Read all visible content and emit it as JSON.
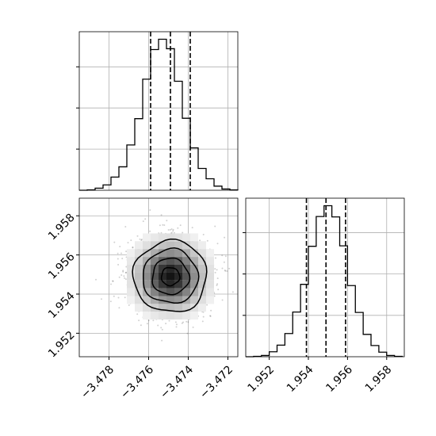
{
  "chart_data": {
    "type": "corner",
    "grid": true,
    "line_color": "#000000",
    "grid_color": "#b0b0b0",
    "parameters": [
      {
        "index": 0,
        "range": [
          -3.4795,
          -3.4715
        ],
        "quantiles": [
          -3.4759,
          -3.4749,
          -3.4739
        ],
        "tick_values": [
          -3.478,
          -3.476,
          -3.474,
          -3.472
        ],
        "tick_labels": [
          "−3.478",
          "−3.476",
          "−3.474",
          "−3.472"
        ],
        "histogram": {
          "bin_edges": [
            -3.4795,
            -3.4791,
            -3.4787,
            -3.4783,
            -3.4779,
            -3.4775,
            -3.4771,
            -3.4767,
            -3.4763,
            -3.4759,
            -3.4755,
            -3.4751,
            -3.4747,
            -3.4743,
            -3.4739,
            -3.4735,
            -3.4731,
            -3.4727,
            -3.4723,
            -3.4719,
            -3.4715
          ],
          "counts": [
            0,
            1,
            5,
            13,
            32,
            57,
            110,
            174,
            270,
            342,
            367,
            344,
            265,
            175,
            103,
            53,
            28,
            10,
            3,
            1
          ]
        }
      },
      {
        "index": 1,
        "range": [
          1.9508,
          1.9589
        ],
        "quantiles": [
          1.9539,
          1.9549,
          1.9559
        ],
        "tick_values": [
          1.952,
          1.954,
          1.956,
          1.958
        ],
        "tick_labels": [
          "1.952",
          "1.954",
          "1.956",
          "1.958"
        ],
        "histogram": {
          "bin_edges": [
            1.9508,
            1.9512,
            1.9516,
            1.952,
            1.9524,
            1.9528,
            1.9532,
            1.9536,
            1.954,
            1.9544,
            1.9548,
            1.9552,
            1.9556,
            1.956,
            1.9564,
            1.9568,
            1.9572,
            1.9576,
            1.958,
            1.9584,
            1.9588
          ],
          "counts": [
            0,
            1,
            3,
            12,
            28,
            56,
            108,
            175,
            267,
            339,
            365,
            338,
            268,
            172,
            107,
            54,
            27,
            11,
            3,
            1
          ]
        }
      }
    ],
    "joint": {
      "x_param": 0,
      "y_param": 1,
      "center": [
        -3.4749,
        1.9549
      ],
      "contours": [
        {
          "level": "0.5",
          "rx": 0.00046,
          "ry": 0.00046
        },
        {
          "level": "1",
          "rx": 0.00093,
          "ry": 0.00093
        },
        {
          "level": "1.5",
          "rx": 0.0014,
          "ry": 0.00138
        },
        {
          "level": "2",
          "rx": 0.00185,
          "ry": 0.00183
        }
      ]
    }
  }
}
